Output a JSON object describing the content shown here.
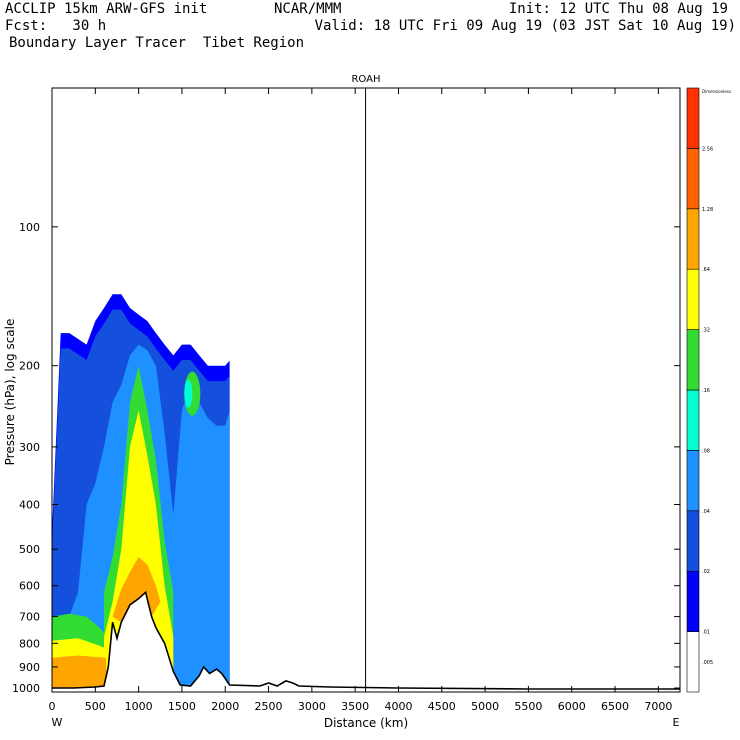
{
  "header": {
    "line1_left": "ACCLIP 15km ARW-GFS init",
    "line1_center": "NCAR/MMM",
    "line1_right": "Init: 12 UTC Thu 08 Aug 19",
    "line2_left": "Fcst:   30 h",
    "line2_right": "Valid: 18 UTC Fri 09 Aug 19 (03 JST Sat 10 Aug 19)",
    "line3_left": "Boundary Layer Tracer  Tibet Region"
  },
  "chart_data": {
    "type": "heatmap",
    "title": "ROAH",
    "xlabel": "Distance (km)",
    "ylabel": "Pressure (hPa), log scale",
    "x_ticks": [
      "0",
      "500",
      "1000",
      "1500",
      "2000",
      "2500",
      "3000",
      "3500",
      "4000",
      "4500",
      "5000",
      "5500",
      "6000",
      "6500",
      "7000"
    ],
    "x_range": [
      0,
      7250
    ],
    "y_ticks": [
      "100",
      "200",
      "300",
      "400",
      "500",
      "600",
      "700",
      "800",
      "900",
      "1000"
    ],
    "y_scale": "log",
    "y_range": [
      1020,
      50
    ],
    "x_end_labels": {
      "left": "W",
      "right": "E"
    },
    "marker_line_km": 3620,
    "colorbar": {
      "unit_label": "Dimensionless",
      "levels": [
        ".005",
        ".01",
        ".02",
        ".04",
        ".08",
        ".16",
        ".32",
        ".64",
        "1.28",
        "2.56"
      ],
      "colors": [
        "#ffffff",
        "#0000ff",
        "#1450dc",
        "#1e90ff",
        "#00ffd2",
        "#32dc32",
        "#ffff00",
        "#ffa500",
        "#ff6400",
        "#ff3200"
      ]
    },
    "plume_columns": [
      {
        "x": 0,
        "top": 460,
        "mid": 860,
        "core": 1000,
        "hot": 1000
      },
      {
        "x": 100,
        "top": 170,
        "mid": 820,
        "core": 830,
        "hot": 860
      },
      {
        "x": 200,
        "top": 170,
        "mid": 700,
        "core": 800,
        "hot": 860
      },
      {
        "x": 300,
        "top": 175,
        "mid": 620,
        "core": 760,
        "hot": 820
      },
      {
        "x": 400,
        "top": 180,
        "mid": 400,
        "core": 700,
        "hot": 800
      },
      {
        "x": 500,
        "top": 160,
        "mid": 360,
        "core": 700,
        "hot": 820
      },
      {
        "x": 600,
        "top": 150,
        "mid": 300,
        "core": 620,
        "hot": 720
      },
      {
        "x": 700,
        "top": 140,
        "mid": 240,
        "core": 520,
        "hot": 640
      },
      {
        "x": 800,
        "top": 140,
        "mid": 220,
        "core": 400,
        "hot": 620
      },
      {
        "x": 900,
        "top": 150,
        "mid": 190,
        "core": 240,
        "hot": 560
      },
      {
        "x": 1000,
        "top": 155,
        "mid": 180,
        "core": 200,
        "hot": 520
      },
      {
        "x": 1100,
        "top": 160,
        "mid": 185,
        "core": 250,
        "hot": 540
      },
      {
        "x": 1200,
        "top": 170,
        "mid": 200,
        "core": 320,
        "hot": 600
      },
      {
        "x": 1300,
        "top": 180,
        "mid": 280,
        "core": 480,
        "hot": 640
      },
      {
        "x": 1400,
        "top": 190,
        "mid": 420,
        "core": 620,
        "hot": 700
      },
      {
        "x": 1500,
        "top": 180,
        "mid": 250,
        "core": 350,
        "hot": 800
      },
      {
        "x": 1600,
        "top": 180,
        "mid": 220,
        "core": 240,
        "hot": 800
      },
      {
        "x": 1700,
        "top": 190,
        "mid": 240,
        "core": 250,
        "hot": 800
      },
      {
        "x": 1800,
        "top": 200,
        "mid": 260,
        "core": 270,
        "hot": 800
      },
      {
        "x": 1900,
        "top": 200,
        "mid": 270,
        "core": 280,
        "hot": 800
      },
      {
        "x": 2000,
        "top": 200,
        "mid": 270,
        "core": 275,
        "hot": 800
      },
      {
        "x": 2050,
        "top": 195,
        "mid": 250,
        "core": 255,
        "hot": 800
      }
    ],
    "terrain": [
      {
        "x": 0,
        "p": 1000
      },
      {
        "x": 250,
        "p": 1000
      },
      {
        "x": 500,
        "p": 995
      },
      {
        "x": 600,
        "p": 990
      },
      {
        "x": 650,
        "p": 900
      },
      {
        "x": 700,
        "p": 720
      },
      {
        "x": 750,
        "p": 780
      },
      {
        "x": 800,
        "p": 720
      },
      {
        "x": 900,
        "p": 660
      },
      {
        "x": 1000,
        "p": 640
      },
      {
        "x": 1080,
        "p": 620
      },
      {
        "x": 1150,
        "p": 700
      },
      {
        "x": 1200,
        "p": 740
      },
      {
        "x": 1300,
        "p": 800
      },
      {
        "x": 1400,
        "p": 920
      },
      {
        "x": 1480,
        "p": 985
      },
      {
        "x": 1600,
        "p": 990
      },
      {
        "x": 1700,
        "p": 940
      },
      {
        "x": 1750,
        "p": 900
      },
      {
        "x": 1820,
        "p": 930
      },
      {
        "x": 1900,
        "p": 910
      },
      {
        "x": 1960,
        "p": 930
      },
      {
        "x": 2050,
        "p": 985
      },
      {
        "x": 2400,
        "p": 990
      },
      {
        "x": 2500,
        "p": 975
      },
      {
        "x": 2600,
        "p": 990
      },
      {
        "x": 2700,
        "p": 965
      },
      {
        "x": 2780,
        "p": 975
      },
      {
        "x": 2850,
        "p": 990
      },
      {
        "x": 3200,
        "p": 995
      },
      {
        "x": 4000,
        "p": 1000
      },
      {
        "x": 5500,
        "p": 1005
      },
      {
        "x": 7250,
        "p": 1005
      }
    ]
  }
}
